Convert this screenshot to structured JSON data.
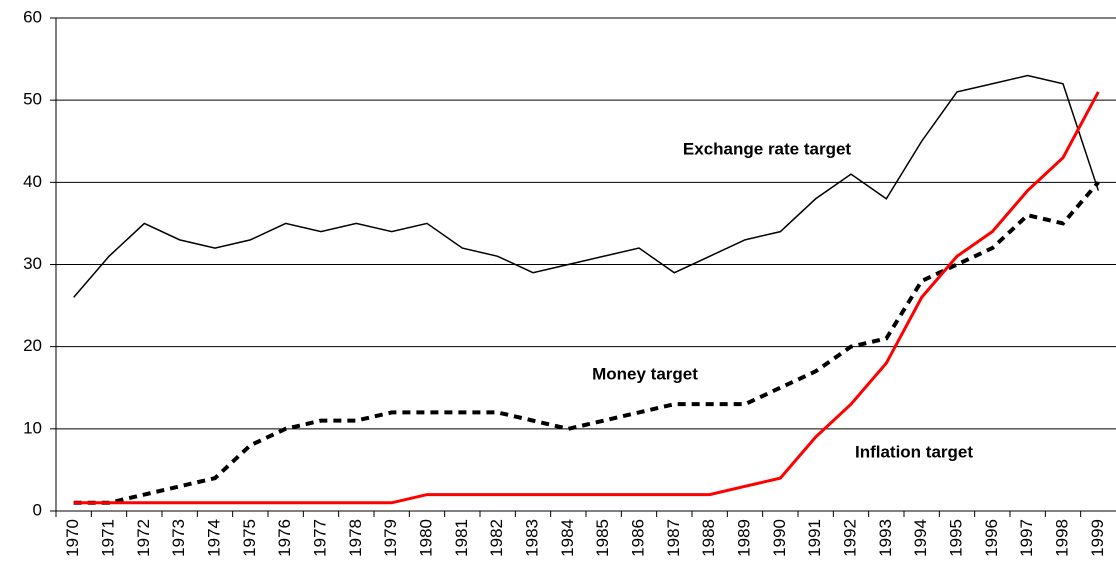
{
  "chart_data": {
    "type": "line",
    "categories": [
      "1970",
      "1971",
      "1972",
      "1973",
      "1974",
      "1975",
      "1976",
      "1977",
      "1978",
      "1979",
      "1980",
      "1981",
      "1982",
      "1983",
      "1984",
      "1985",
      "1986",
      "1987",
      "1988",
      "1989",
      "1990",
      "1991",
      "1992",
      "1993",
      "1994",
      "1995",
      "1996",
      "1997",
      "1998",
      "1999"
    ],
    "series": [
      {
        "name": "Exchange rate target",
        "color": "#000000",
        "style": "solid",
        "values": [
          26,
          31,
          35,
          33,
          32,
          33,
          35,
          34,
          35,
          34,
          35,
          32,
          31,
          29,
          30,
          31,
          32,
          29,
          31,
          33,
          34,
          38,
          41,
          38,
          45,
          51,
          52,
          53,
          52,
          39
        ]
      },
      {
        "name": "Money target",
        "color": "#000000",
        "style": "dashed",
        "values": [
          1,
          1,
          2,
          3,
          4,
          8,
          10,
          11,
          11,
          12,
          12,
          12,
          12,
          11,
          10,
          11,
          12,
          13,
          13,
          13,
          15,
          17,
          20,
          21,
          28,
          30,
          32,
          36,
          35,
          40
        ]
      },
      {
        "name": "Inflation target",
        "color": "#ff0000",
        "style": "solid",
        "values": [
          1,
          1,
          1,
          1,
          1,
          1,
          1,
          1,
          1,
          1,
          2,
          2,
          2,
          2,
          2,
          2,
          2,
          2,
          2,
          3,
          4,
          9,
          13,
          18,
          26,
          31,
          34,
          39,
          43,
          51
        ]
      }
    ],
    "ylim": [
      0,
      60
    ],
    "yticks": [
      0,
      10,
      20,
      30,
      40,
      50,
      60
    ],
    "grid": true
  }
}
